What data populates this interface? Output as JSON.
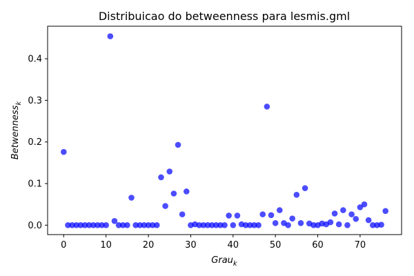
{
  "chart_data": {
    "type": "scatter",
    "title": "Distribuicao do betweenness para lesmis.gml",
    "xlabel": "Grau",
    "xlabel_sub": "k",
    "ylabel": "Betwenness",
    "ylabel_sub": "k",
    "xlim": [
      -3.8,
      79.8
    ],
    "ylim": [
      -0.0227,
      0.4782
    ],
    "xticks": [
      0,
      10,
      20,
      30,
      40,
      50,
      60,
      70
    ],
    "yticks": [
      0.0,
      0.1,
      0.2,
      0.3,
      0.4
    ],
    "ytick_labels": [
      "0.0",
      "0.1",
      "0.2",
      "0.3",
      "0.4"
    ],
    "grid": false,
    "marker_color": "#0000ff",
    "marker_alpha": 0.7,
    "x": [
      0,
      1,
      2,
      3,
      4,
      5,
      6,
      7,
      8,
      9,
      10,
      11,
      12,
      13,
      14,
      15,
      16,
      17,
      18,
      19,
      20,
      21,
      22,
      23,
      24,
      25,
      26,
      27,
      28,
      29,
      30,
      31,
      32,
      33,
      34,
      35,
      36,
      37,
      38,
      39,
      40,
      41,
      42,
      43,
      44,
      45,
      46,
      47,
      48,
      49,
      50,
      51,
      52,
      53,
      54,
      55,
      56,
      57,
      58,
      59,
      60,
      61,
      62,
      63,
      64,
      65,
      66,
      67,
      68,
      69,
      70,
      71,
      72,
      73,
      74,
      75,
      76
    ],
    "y": [
      0.176,
      0.0,
      0.0,
      0.0,
      0.0,
      0.0,
      0.0,
      0.0,
      0.0,
      0.0,
      0.0,
      0.454,
      0.01,
      0.0,
      0.0,
      0.0,
      0.066,
      0.0,
      0.0,
      0.0,
      0.0,
      0.0,
      0.0,
      0.115,
      0.046,
      0.129,
      0.076,
      0.193,
      0.026,
      0.081,
      0.0,
      0.002,
      0.0,
      0.0,
      0.0,
      0.0,
      0.0,
      0.0,
      0.0,
      0.023,
      0.0,
      0.023,
      0.002,
      0.0,
      0.0,
      0.0,
      0.0,
      0.026,
      0.285,
      0.024,
      0.005,
      0.036,
      0.005,
      0.0,
      0.016,
      0.073,
      0.005,
      0.089,
      0.004,
      0.0,
      0.0,
      0.004,
      0.002,
      0.007,
      0.028,
      0.002,
      0.036,
      0.0,
      0.026,
      0.015,
      0.043,
      0.05,
      0.012,
      0.0,
      0.0,
      0.001,
      0.034
    ]
  }
}
